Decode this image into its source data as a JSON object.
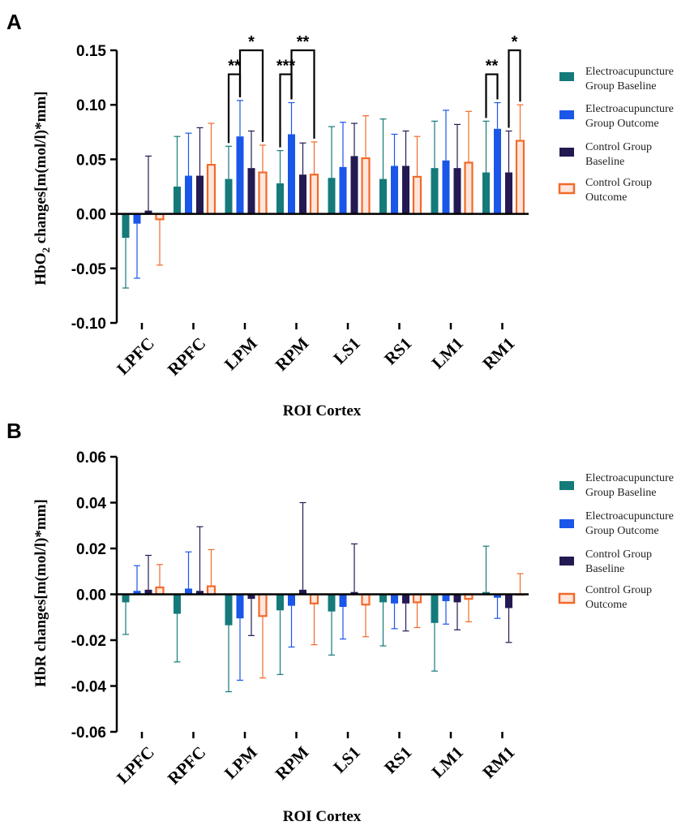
{
  "panels": [
    {
      "letter": "A",
      "ylabel_main": "HbO",
      "ylabel_sub": "2",
      "ylabel_rest": " changes[m(mol/l)*mm]",
      "xlabel": "ROI Cortex"
    },
    {
      "letter": "B",
      "ylabel_main": "HbR changes[m(mol/l)*mm]",
      "ylabel_sub": "",
      "ylabel_rest": "",
      "xlabel": "ROI Cortex"
    }
  ],
  "legend": [
    {
      "line1": "Electroacupuncture",
      "line2": "Group Baseline"
    },
    {
      "line1": "Electroacupuncture",
      "line2": "Group Outcome"
    },
    {
      "line1": "Control Group",
      "line2": "Baseline"
    },
    {
      "line1": "Control Group",
      "line2": "Outcome"
    }
  ],
  "colors": {
    "ea_baseline": "#157a7a",
    "ea_outcome": "#1a56e8",
    "ctrl_baseline": "#241a52",
    "ctrl_outcome": "#f26a2a"
  },
  "chart_data": [
    {
      "type": "bar",
      "title": "A",
      "xlabel": "ROI Cortex",
      "ylabel": "HbO2 changes[m(mol/l)*mm]",
      "ylim": [
        -0.1,
        0.15
      ],
      "yticks": [
        "0.15",
        "0.10",
        "0.05",
        "0.00",
        "-0.05",
        "-0.10"
      ],
      "ytick_values": [
        0.15,
        0.1,
        0.05,
        0.0,
        -0.05,
        -0.1
      ],
      "categories": [
        "LPFC",
        "RPFC",
        "LPM",
        "RPM",
        "LS1",
        "RS1",
        "LM1",
        "RM1"
      ],
      "series": [
        {
          "name": "Electroacupuncture Group Baseline",
          "values": [
            -0.022,
            0.025,
            0.032,
            0.028,
            0.033,
            0.032,
            0.042,
            0.038
          ],
          "errors": [
            0.046,
            0.046,
            0.03,
            0.03,
            0.047,
            0.055,
            0.043,
            0.047
          ]
        },
        {
          "name": "Electroacupuncture Group Outcome",
          "values": [
            -0.009,
            0.035,
            0.071,
            0.073,
            0.043,
            0.044,
            0.049,
            0.078
          ],
          "errors": [
            0.05,
            0.039,
            0.033,
            0.029,
            0.041,
            0.029,
            0.046,
            0.024
          ]
        },
        {
          "name": "Control Group Baseline",
          "values": [
            0.003,
            0.035,
            0.042,
            0.036,
            0.053,
            0.044,
            0.042,
            0.038
          ],
          "errors": [
            0.05,
            0.044,
            0.034,
            0.029,
            0.03,
            0.032,
            0.04,
            0.038
          ]
        },
        {
          "name": "Control Group Outcome",
          "values": [
            -0.005,
            0.045,
            0.038,
            0.036,
            0.051,
            0.034,
            0.047,
            0.067
          ],
          "errors": [
            0.042,
            0.038,
            0.025,
            0.03,
            0.039,
            0.037,
            0.047,
            0.033
          ]
        }
      ],
      "significance": [
        {
          "category": "LPM",
          "from_series": 0,
          "to_series": 1,
          "label": "**"
        },
        {
          "category": "LPM",
          "from_series": 1,
          "to_series": 3,
          "label": "*"
        },
        {
          "category": "RPM",
          "from_series": 0,
          "to_series": 1,
          "label": "***"
        },
        {
          "category": "RPM",
          "from_series": 1,
          "to_series": 3,
          "label": "**"
        },
        {
          "category": "RM1",
          "from_series": 0,
          "to_series": 1,
          "label": "**"
        },
        {
          "category": "RM1",
          "from_series": 2,
          "to_series": 3,
          "label": "*"
        }
      ]
    },
    {
      "type": "bar",
      "title": "B",
      "xlabel": "ROI Cortex",
      "ylabel": "HbR changes[m(mol/l)*mm]",
      "ylim": [
        -0.06,
        0.06
      ],
      "yticks": [
        "0.06",
        "0.04",
        "0.02",
        "0.00",
        "-0.02",
        "-0.04",
        "-0.06"
      ],
      "ytick_values": [
        0.06,
        0.04,
        0.02,
        0.0,
        -0.02,
        -0.04,
        -0.06
      ],
      "categories": [
        "LPFC",
        "RPFC",
        "LPM",
        "RPM",
        "LS1",
        "RS1",
        "LM1",
        "RM1"
      ],
      "series": [
        {
          "name": "Electroacupuncture Group Baseline",
          "values": [
            -0.0035,
            -0.0085,
            -0.0135,
            -0.007,
            -0.0075,
            -0.0035,
            -0.0125,
            0.001
          ],
          "errors": [
            0.014,
            0.021,
            0.029,
            0.028,
            0.019,
            0.019,
            0.021,
            0.02
          ]
        },
        {
          "name": "Electroacupuncture Group Outcome",
          "values": [
            0.0015,
            0.0025,
            -0.0105,
            -0.005,
            -0.0055,
            -0.004,
            -0.003,
            -0.0015
          ],
          "errors": [
            0.011,
            0.016,
            0.027,
            0.018,
            0.014,
            0.011,
            0.01,
            0.009
          ]
        },
        {
          "name": "Control Group Baseline",
          "values": [
            0.002,
            0.0015,
            -0.002,
            0.002,
            0.001,
            -0.004,
            -0.0035,
            -0.006
          ],
          "errors": [
            0.015,
            0.028,
            0.016,
            0.038,
            0.021,
            0.012,
            0.012,
            0.015
          ]
        },
        {
          "name": "Control Group Outcome",
          "values": [
            0.003,
            0.0035,
            -0.0095,
            -0.004,
            -0.0045,
            -0.0035,
            -0.002,
            0.0
          ],
          "errors": [
            0.01,
            0.016,
            0.027,
            0.018,
            0.014,
            0.011,
            0.01,
            0.009
          ]
        }
      ],
      "significance": []
    }
  ]
}
